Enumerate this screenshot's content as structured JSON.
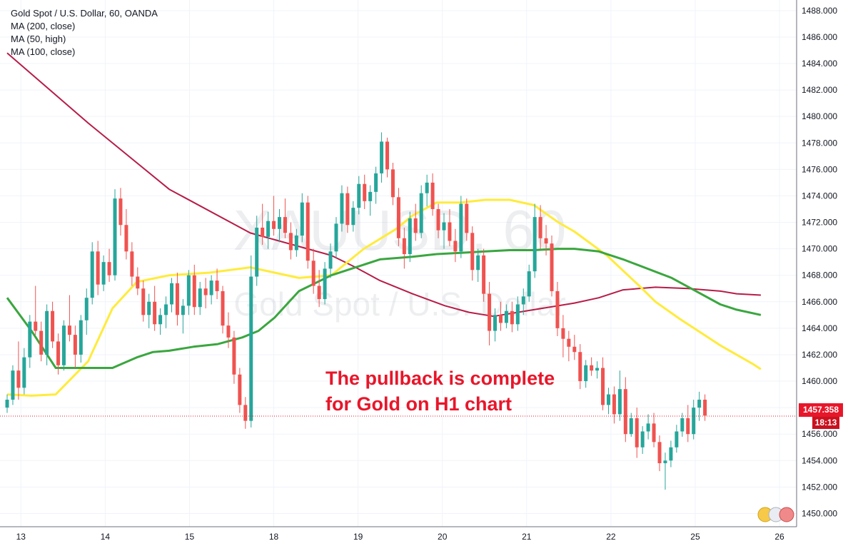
{
  "legend": {
    "symbol": "Gold Spot / U.S. Dollar, 60, OANDA",
    "ma1": "MA (200, close)",
    "ma2": "MA (50, high)",
    "ma3": "MA (100, close)"
  },
  "watermark": {
    "main": "XAUUSD, 60",
    "sub": "Gold Spot / U.S. Dollar"
  },
  "annotation": {
    "line1": "The pullback is complete",
    "line2": "for Gold on H1 chart"
  },
  "price_tag": {
    "value": "1457.358",
    "timer": "18:13"
  },
  "colors": {
    "up": "#26a69a",
    "down": "#ef5350",
    "ma200": "#b71c47",
    "ma50": "#ffeb3b",
    "ma100": "#3aa63f",
    "annotation": "#e8162a",
    "axis_text": "#131722",
    "grid": "#f0f3fa"
  },
  "chart_data": {
    "type": "candlestick",
    "title": "Gold Spot / U.S. Dollar, 60, OANDA",
    "x_tick_labels": [
      "13",
      "14",
      "15",
      "18",
      "19",
      "20",
      "21",
      "22",
      "25",
      "26"
    ],
    "y_tick_labels": [
      "1450.000",
      "1452.000",
      "1454.000",
      "1456.000",
      "1458.000",
      "1460.000",
      "1462.000",
      "1464.000",
      "1466.000",
      "1468.000",
      "1470.000",
      "1472.000",
      "1474.000",
      "1476.000",
      "1478.000",
      "1480.000",
      "1482.000",
      "1484.000",
      "1486.000",
      "1488.000"
    ],
    "ylim": [
      1449.0,
      1488.8
    ],
    "grid": true,
    "current_price": 1457.358,
    "series": [
      {
        "name": "MA (200, close)",
        "x": [
          0,
          1,
          2,
          3,
          4,
          4.3,
          4.6,
          5,
          5.4,
          5.7,
          6,
          6.5,
          7,
          7.3,
          7.6,
          8,
          8.4,
          8.8,
          9,
          9.3
        ],
        "y": [
          1484.8,
          1479.5,
          1474.5,
          1471.2,
          1469.5,
          1468.6,
          1467.6,
          1466.6,
          1465.7,
          1465.2,
          1464.9,
          1465.4,
          1465.9,
          1466.3,
          1466.9,
          1467.1,
          1467.0,
          1466.8,
          1466.6,
          1466.5
        ]
      },
      {
        "name": "MA (50, high)",
        "x": [
          0,
          0.3,
          0.6,
          1,
          1.3,
          1.6,
          2,
          2.5,
          3,
          3.3,
          3.6,
          4,
          4.4,
          4.8,
          5,
          5.3,
          5.6,
          5.9,
          6.2,
          6.5,
          6.8,
          7,
          7.4,
          7.8,
          8,
          8.3,
          8.6,
          8.8,
          9,
          9.2,
          9.3
        ],
        "y": [
          1459.0,
          1458.9,
          1459.0,
          1461.5,
          1465.5,
          1467.5,
          1468.0,
          1468.2,
          1468.6,
          1468.2,
          1467.8,
          1468.0,
          1470.0,
          1471.5,
          1472.5,
          1473.5,
          1473.5,
          1473.7,
          1473.7,
          1473.3,
          1472.0,
          1471.3,
          1469.5,
          1467.2,
          1466.0,
          1464.7,
          1463.5,
          1462.7,
          1462.0,
          1461.3,
          1460.9
        ]
      },
      {
        "name": "MA (100, close)",
        "x": [
          0,
          0.3,
          0.6,
          1,
          1.3,
          1.6,
          1.8,
          2,
          2.3,
          2.6,
          2.9,
          3.1,
          3.3,
          3.6,
          4,
          4.3,
          4.6,
          5,
          5.3,
          5.6,
          5.9,
          6.2,
          6.5,
          6.8,
          7,
          7.3,
          7.6,
          7.9,
          8.2,
          8.5,
          8.8,
          9,
          9.3
        ],
        "y": [
          1466.3,
          1463.8,
          1461.0,
          1461.0,
          1461.0,
          1461.8,
          1462.2,
          1462.3,
          1462.6,
          1462.8,
          1463.3,
          1463.8,
          1464.8,
          1466.8,
          1468.0,
          1468.6,
          1469.2,
          1469.4,
          1469.6,
          1469.7,
          1469.8,
          1469.9,
          1469.9,
          1470.0,
          1470.0,
          1469.8,
          1469.2,
          1468.5,
          1467.8,
          1466.8,
          1465.8,
          1465.4,
          1465.0
        ]
      }
    ],
    "candles": {
      "columns": [
        "x",
        "open",
        "high",
        "low",
        "close"
      ],
      "rows": [
        [
          0.0,
          1458.0,
          1459.0,
          1457.6,
          1458.6
        ],
        [
          0.07,
          1458.6,
          1461.2,
          1458.2,
          1460.8
        ],
        [
          0.14,
          1460.8,
          1463.0,
          1458.6,
          1459.5
        ],
        [
          0.21,
          1459.5,
          1462.5,
          1459.0,
          1461.8
        ],
        [
          0.28,
          1461.8,
          1465.0,
          1461.0,
          1464.5
        ],
        [
          0.35,
          1464.5,
          1467.2,
          1463.5,
          1463.8
        ],
        [
          0.42,
          1463.8,
          1464.5,
          1461.5,
          1462.0
        ],
        [
          0.49,
          1462.0,
          1465.8,
          1461.2,
          1465.3
        ],
        [
          0.56,
          1465.3,
          1466.0,
          1462.5,
          1463.0
        ],
        [
          0.63,
          1463.0,
          1463.6,
          1460.5,
          1461.2
        ],
        [
          0.7,
          1461.2,
          1464.6,
          1460.8,
          1464.2
        ],
        [
          0.77,
          1464.2,
          1466.5,
          1463.0,
          1463.5
        ],
        [
          0.84,
          1463.5,
          1464.2,
          1461.0,
          1462.0
        ],
        [
          0.91,
          1462.0,
          1465.0,
          1461.4,
          1464.6
        ],
        [
          0.98,
          1464.6,
          1467.0,
          1463.5,
          1466.3
        ],
        [
          1.05,
          1466.3,
          1470.5,
          1465.8,
          1469.8
        ],
        [
          1.12,
          1469.8,
          1470.6,
          1466.5,
          1467.3
        ],
        [
          1.19,
          1467.3,
          1469.5,
          1466.8,
          1469.0
        ],
        [
          1.26,
          1469.0,
          1470.0,
          1467.5,
          1468.0
        ],
        [
          1.33,
          1468.0,
          1474.5,
          1467.6,
          1473.8
        ],
        [
          1.4,
          1473.8,
          1474.6,
          1471.0,
          1471.8
        ],
        [
          1.47,
          1471.8,
          1473.0,
          1469.2,
          1469.8
        ],
        [
          1.54,
          1469.8,
          1470.5,
          1467.2,
          1467.9
        ],
        [
          1.61,
          1467.9,
          1468.6,
          1466.5,
          1467.0
        ],
        [
          1.68,
          1467.0,
          1467.6,
          1464.5,
          1465.0
        ],
        [
          1.75,
          1465.0,
          1466.6,
          1464.0,
          1466.0
        ],
        [
          1.82,
          1466.0,
          1467.2,
          1463.8,
          1464.3
        ],
        [
          1.89,
          1464.3,
          1465.5,
          1463.5,
          1465.0
        ],
        [
          1.96,
          1465.0,
          1466.4,
          1464.0,
          1465.8
        ],
        [
          2.03,
          1465.8,
          1467.8,
          1465.2,
          1467.4
        ],
        [
          2.1,
          1467.4,
          1468.2,
          1464.2,
          1465.0
        ],
        [
          2.17,
          1465.0,
          1466.2,
          1463.6,
          1465.7
        ],
        [
          2.24,
          1465.7,
          1468.4,
          1465.0,
          1468.0
        ],
        [
          2.31,
          1468.0,
          1468.8,
          1465.0,
          1465.6
        ],
        [
          2.38,
          1465.6,
          1467.5,
          1465.0,
          1467.0
        ],
        [
          2.45,
          1467.0,
          1467.8,
          1465.5,
          1466.5
        ],
        [
          2.52,
          1466.5,
          1468.0,
          1465.8,
          1467.6
        ],
        [
          2.59,
          1467.6,
          1468.5,
          1466.2,
          1466.8
        ],
        [
          2.66,
          1466.8,
          1467.2,
          1463.6,
          1464.2
        ],
        [
          2.73,
          1464.2,
          1465.2,
          1462.5,
          1463.3
        ],
        [
          2.8,
          1463.3,
          1463.8,
          1459.8,
          1460.5
        ],
        [
          2.87,
          1460.5,
          1461.0,
          1457.6,
          1458.2
        ],
        [
          2.94,
          1458.2,
          1458.8,
          1456.4,
          1457.0
        ],
        [
          3.01,
          1457.0,
          1469.5,
          1456.5,
          1467.9
        ],
        [
          3.08,
          1467.9,
          1472.5,
          1467.2,
          1471.6
        ],
        [
          3.15,
          1471.6,
          1473.4,
          1470.3,
          1470.9
        ],
        [
          3.22,
          1470.9,
          1472.8,
          1470.0,
          1472.1
        ],
        [
          3.29,
          1472.1,
          1474.0,
          1471.0,
          1471.5
        ],
        [
          3.36,
          1471.5,
          1473.0,
          1470.5,
          1472.4
        ],
        [
          3.43,
          1472.4,
          1473.8,
          1470.8,
          1471.2
        ],
        [
          3.5,
          1471.2,
          1472.0,
          1469.2,
          1469.9
        ],
        [
          3.57,
          1469.9,
          1471.5,
          1469.4,
          1471.0
        ],
        [
          3.64,
          1471.0,
          1474.2,
          1470.5,
          1473.5
        ],
        [
          3.71,
          1473.5,
          1474.0,
          1468.5,
          1469.1
        ],
        [
          3.78,
          1469.1,
          1470.0,
          1466.6,
          1467.2
        ],
        [
          3.85,
          1467.2,
          1468.4,
          1465.6,
          1466.2
        ],
        [
          3.92,
          1466.2,
          1469.0,
          1465.8,
          1468.5
        ],
        [
          3.99,
          1468.5,
          1470.4,
          1467.8,
          1469.8
        ],
        [
          4.06,
          1469.8,
          1472.4,
          1469.3,
          1471.9
        ],
        [
          4.13,
          1471.9,
          1474.8,
          1471.3,
          1474.2
        ],
        [
          4.2,
          1474.2,
          1474.7,
          1471.2,
          1471.8
        ],
        [
          4.27,
          1471.8,
          1473.6,
          1471.3,
          1473.1
        ],
        [
          4.34,
          1473.1,
          1475.5,
          1472.6,
          1474.9
        ],
        [
          4.41,
          1474.9,
          1475.6,
          1473.0,
          1473.6
        ],
        [
          4.48,
          1473.6,
          1474.8,
          1472.5,
          1474.3
        ],
        [
          4.55,
          1474.3,
          1476.2,
          1473.4,
          1475.7
        ],
        [
          4.62,
          1475.7,
          1478.8,
          1475.0,
          1478.1
        ],
        [
          4.69,
          1478.1,
          1478.4,
          1475.4,
          1476.0
        ],
        [
          4.76,
          1476.0,
          1476.5,
          1473.3,
          1473.9
        ],
        [
          4.83,
          1473.9,
          1474.6,
          1470.2,
          1470.8
        ],
        [
          4.9,
          1470.8,
          1471.6,
          1468.5,
          1469.6
        ],
        [
          4.97,
          1469.6,
          1472.8,
          1469.0,
          1472.3
        ],
        [
          5.04,
          1472.3,
          1473.4,
          1470.6,
          1471.2
        ],
        [
          5.11,
          1471.2,
          1474.8,
          1470.8,
          1474.2
        ],
        [
          5.18,
          1474.2,
          1475.6,
          1473.2,
          1475.0
        ],
        [
          5.25,
          1475.0,
          1475.7,
          1472.5,
          1473.0
        ],
        [
          5.32,
          1473.0,
          1473.4,
          1470.8,
          1471.4
        ],
        [
          5.39,
          1471.4,
          1472.7,
          1470.0,
          1472.0
        ],
        [
          5.46,
          1472.0,
          1473.0,
          1470.2,
          1470.6
        ],
        [
          5.53,
          1470.6,
          1471.5,
          1469.0,
          1469.8
        ],
        [
          5.6,
          1469.8,
          1474.0,
          1469.3,
          1473.4
        ],
        [
          5.67,
          1473.4,
          1473.8,
          1470.6,
          1471.2
        ],
        [
          5.74,
          1471.2,
          1471.7,
          1467.6,
          1468.4
        ],
        [
          5.81,
          1468.4,
          1470.0,
          1467.5,
          1469.5
        ],
        [
          5.88,
          1469.5,
          1470.0,
          1466.0,
          1466.6
        ],
        [
          5.95,
          1466.6,
          1467.5,
          1462.7,
          1463.8
        ],
        [
          6.02,
          1463.8,
          1465.5,
          1463.0,
          1465.0
        ],
        [
          6.09,
          1465.0,
          1466.0,
          1463.8,
          1464.4
        ],
        [
          6.16,
          1464.4,
          1465.8,
          1464.0,
          1465.3
        ],
        [
          6.23,
          1465.3,
          1466.0,
          1463.7,
          1464.3
        ],
        [
          6.3,
          1464.3,
          1466.4,
          1463.8,
          1465.8
        ],
        [
          6.37,
          1465.8,
          1467.0,
          1465.0,
          1466.4
        ],
        [
          6.44,
          1466.4,
          1468.8,
          1466.0,
          1468.3
        ],
        [
          6.51,
          1468.3,
          1473.4,
          1467.8,
          1472.4
        ],
        [
          6.58,
          1472.4,
          1473.3,
          1470.0,
          1470.8
        ],
        [
          6.65,
          1470.8,
          1471.8,
          1469.5,
          1470.4
        ],
        [
          6.72,
          1470.4,
          1471.0,
          1466.4,
          1466.8
        ],
        [
          6.79,
          1466.8,
          1467.5,
          1463.4,
          1464.0
        ],
        [
          6.86,
          1464.0,
          1465.0,
          1461.8,
          1463.2
        ],
        [
          6.93,
          1463.2,
          1463.8,
          1461.5,
          1462.6
        ],
        [
          7.0,
          1462.6,
          1463.5,
          1461.6,
          1462.2
        ],
        [
          7.07,
          1462.2,
          1462.8,
          1459.4,
          1460.0
        ],
        [
          7.14,
          1460.0,
          1461.6,
          1459.5,
          1461.2
        ],
        [
          7.21,
          1461.2,
          1461.8,
          1460.4,
          1460.8
        ],
        [
          7.28,
          1460.8,
          1461.5,
          1460.2,
          1461.0
        ],
        [
          7.35,
          1461.0,
          1461.8,
          1457.8,
          1458.2
        ],
        [
          7.42,
          1458.2,
          1459.5,
          1457.5,
          1459.0
        ],
        [
          7.49,
          1459.0,
          1459.6,
          1456.8,
          1457.5
        ],
        [
          7.56,
          1457.5,
          1460.8,
          1457.0,
          1459.4
        ],
        [
          7.63,
          1459.4,
          1460.3,
          1455.4,
          1456.0
        ],
        [
          7.7,
          1456.0,
          1457.6,
          1455.8,
          1457.2
        ],
        [
          7.77,
          1457.2,
          1458.0,
          1454.2,
          1455.0
        ],
        [
          7.84,
          1455.0,
          1456.6,
          1454.5,
          1456.2
        ],
        [
          7.91,
          1456.2,
          1457.5,
          1455.6,
          1456.8
        ],
        [
          7.98,
          1456.8,
          1457.6,
          1455.0,
          1455.4
        ],
        [
          8.05,
          1455.4,
          1455.9,
          1453.2,
          1453.8
        ],
        [
          8.12,
          1453.8,
          1454.6,
          1451.8,
          1454.0
        ],
        [
          8.19,
          1454.0,
          1455.5,
          1453.5,
          1455.0
        ],
        [
          8.26,
          1455.0,
          1456.7,
          1454.6,
          1456.2
        ],
        [
          8.33,
          1456.2,
          1457.6,
          1455.8,
          1457.2
        ],
        [
          8.4,
          1457.2,
          1458.2,
          1455.4,
          1456.0
        ],
        [
          8.47,
          1456.0,
          1458.6,
          1455.6,
          1458.0
        ],
        [
          8.54,
          1458.0,
          1459.2,
          1457.0,
          1458.6
        ],
        [
          8.61,
          1458.6,
          1459.0,
          1457.0,
          1457.4
        ]
      ]
    }
  }
}
